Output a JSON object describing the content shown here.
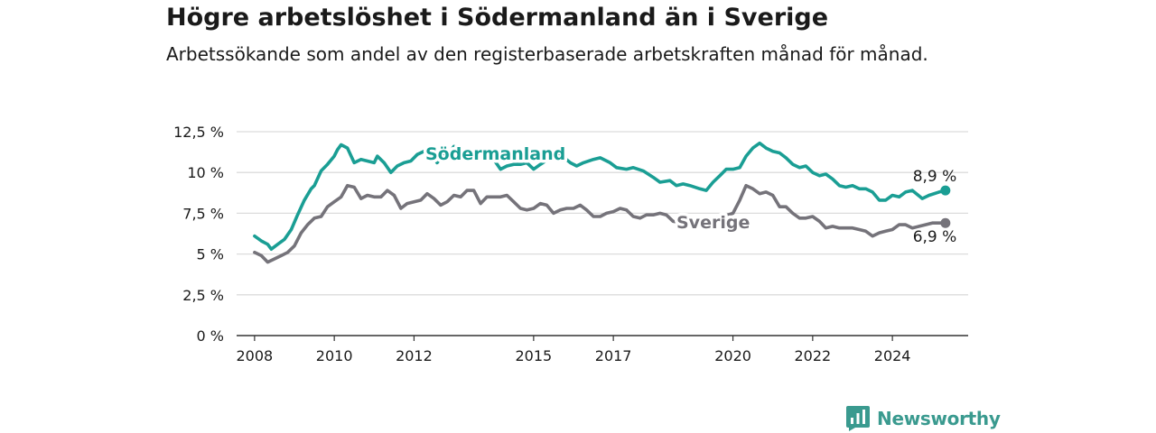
{
  "title": "Högre arbetslöshet i Södermanland än i Sverige",
  "subtitle": "Arbetssökande som andel av den registerbaserade arbetskraften månad för månad.",
  "brand": {
    "name": "Newsworthy",
    "icon": "chart-logo-icon"
  },
  "colors": {
    "sodermanland": "#1a9e94",
    "sverige": "#75737a",
    "grid": "#dcdcdc",
    "axis": "#333333"
  },
  "chart_data": {
    "type": "line",
    "x_ticks": [
      2008,
      2010,
      2012,
      2015,
      2017,
      2020,
      2022,
      2024
    ],
    "y_ticks": [
      {
        "value": 0,
        "label": "0 %"
      },
      {
        "value": 2.5,
        "label": "2,5 %"
      },
      {
        "value": 5,
        "label": "5 %"
      },
      {
        "value": 7.5,
        "label": "7,5 %"
      },
      {
        "value": 10,
        "label": "10 %"
      },
      {
        "value": 12.5,
        "label": "12,5 %"
      }
    ],
    "xlim": [
      2007.55,
      2025.9
    ],
    "ylim": [
      0,
      12.5
    ],
    "grid": true,
    "series": [
      {
        "name": "Södermanland",
        "end_label": "8,9 %",
        "points": [
          [
            2008.0,
            6.1
          ],
          [
            2008.17,
            5.8
          ],
          [
            2008.33,
            5.6
          ],
          [
            2008.42,
            5.3
          ],
          [
            2008.58,
            5.6
          ],
          [
            2008.75,
            5.9
          ],
          [
            2008.92,
            6.5
          ],
          [
            2009.08,
            7.4
          ],
          [
            2009.25,
            8.3
          ],
          [
            2009.42,
            9.0
          ],
          [
            2009.5,
            9.2
          ],
          [
            2009.67,
            10.1
          ],
          [
            2009.83,
            10.5
          ],
          [
            2010.0,
            11.0
          ],
          [
            2010.08,
            11.4
          ],
          [
            2010.17,
            11.7
          ],
          [
            2010.33,
            11.5
          ],
          [
            2010.5,
            10.6
          ],
          [
            2010.67,
            10.8
          ],
          [
            2010.83,
            10.7
          ],
          [
            2011.0,
            10.6
          ],
          [
            2011.08,
            11.0
          ],
          [
            2011.25,
            10.6
          ],
          [
            2011.42,
            10.0
          ],
          [
            2011.58,
            10.4
          ],
          [
            2011.75,
            10.6
          ],
          [
            2011.92,
            10.7
          ],
          [
            2012.08,
            11.1
          ],
          [
            2012.25,
            11.3
          ],
          [
            2012.42,
            11.2
          ],
          [
            2012.58,
            10.6
          ],
          [
            2012.75,
            11.1
          ],
          [
            2012.92,
            11.3
          ],
          [
            2013.0,
            11.6
          ],
          [
            2013.17,
            11.4
          ],
          [
            2013.33,
            10.9
          ],
          [
            2013.5,
            11.2
          ],
          [
            2013.67,
            11.1
          ],
          [
            2013.83,
            11.0
          ],
          [
            2014.0,
            10.8
          ],
          [
            2014.17,
            10.2
          ],
          [
            2014.33,
            10.4
          ],
          [
            2014.5,
            10.5
          ],
          [
            2014.67,
            10.5
          ],
          [
            2014.83,
            10.6
          ],
          [
            2015.0,
            10.2
          ],
          [
            2015.17,
            10.5
          ],
          [
            2015.42,
            10.9
          ],
          [
            2015.67,
            11.1
          ],
          [
            2015.92,
            10.6
          ],
          [
            2016.08,
            10.4
          ],
          [
            2016.25,
            10.6
          ],
          [
            2016.5,
            10.8
          ],
          [
            2016.67,
            10.9
          ],
          [
            2016.92,
            10.6
          ],
          [
            2017.08,
            10.3
          ],
          [
            2017.33,
            10.2
          ],
          [
            2017.5,
            10.3
          ],
          [
            2017.75,
            10.1
          ],
          [
            2018.0,
            9.7
          ],
          [
            2018.17,
            9.4
          ],
          [
            2018.42,
            9.5
          ],
          [
            2018.58,
            9.2
          ],
          [
            2018.75,
            9.3
          ],
          [
            2018.92,
            9.2
          ],
          [
            2019.17,
            9.0
          ],
          [
            2019.33,
            8.9
          ],
          [
            2019.5,
            9.4
          ],
          [
            2019.67,
            9.8
          ],
          [
            2019.83,
            10.2
          ],
          [
            2020.0,
            10.2
          ],
          [
            2020.17,
            10.3
          ],
          [
            2020.33,
            11.0
          ],
          [
            2020.5,
            11.5
          ],
          [
            2020.67,
            11.8
          ],
          [
            2020.83,
            11.5
          ],
          [
            2021.0,
            11.3
          ],
          [
            2021.17,
            11.2
          ],
          [
            2021.33,
            10.9
          ],
          [
            2021.5,
            10.5
          ],
          [
            2021.67,
            10.3
          ],
          [
            2021.83,
            10.4
          ],
          [
            2022.0,
            10.0
          ],
          [
            2022.17,
            9.8
          ],
          [
            2022.33,
            9.9
          ],
          [
            2022.5,
            9.6
          ],
          [
            2022.67,
            9.2
          ],
          [
            2022.83,
            9.1
          ],
          [
            2023.0,
            9.2
          ],
          [
            2023.17,
            9.0
          ],
          [
            2023.33,
            9.0
          ],
          [
            2023.5,
            8.8
          ],
          [
            2023.67,
            8.3
          ],
          [
            2023.83,
            8.3
          ],
          [
            2024.0,
            8.6
          ],
          [
            2024.17,
            8.5
          ],
          [
            2024.33,
            8.8
          ],
          [
            2024.5,
            8.9
          ],
          [
            2024.75,
            8.4
          ],
          [
            2024.92,
            8.6
          ],
          [
            2025.17,
            8.8
          ],
          [
            2025.33,
            8.9
          ]
        ]
      },
      {
        "name": "Sverige",
        "end_label": "6,9 %",
        "points": [
          [
            2008.0,
            5.1
          ],
          [
            2008.17,
            4.9
          ],
          [
            2008.33,
            4.5
          ],
          [
            2008.5,
            4.7
          ],
          [
            2008.67,
            4.9
          ],
          [
            2008.83,
            5.1
          ],
          [
            2009.0,
            5.5
          ],
          [
            2009.17,
            6.3
          ],
          [
            2009.33,
            6.8
          ],
          [
            2009.5,
            7.2
          ],
          [
            2009.67,
            7.3
          ],
          [
            2009.83,
            7.9
          ],
          [
            2010.0,
            8.2
          ],
          [
            2010.17,
            8.5
          ],
          [
            2010.33,
            9.2
          ],
          [
            2010.5,
            9.1
          ],
          [
            2010.67,
            8.4
          ],
          [
            2010.83,
            8.6
          ],
          [
            2011.0,
            8.5
          ],
          [
            2011.17,
            8.5
          ],
          [
            2011.33,
            8.9
          ],
          [
            2011.5,
            8.6
          ],
          [
            2011.67,
            7.8
          ],
          [
            2011.83,
            8.1
          ],
          [
            2012.0,
            8.2
          ],
          [
            2012.17,
            8.3
          ],
          [
            2012.33,
            8.7
          ],
          [
            2012.5,
            8.4
          ],
          [
            2012.67,
            8.0
          ],
          [
            2012.83,
            8.2
          ],
          [
            2013.0,
            8.6
          ],
          [
            2013.17,
            8.5
          ],
          [
            2013.33,
            8.9
          ],
          [
            2013.5,
            8.9
          ],
          [
            2013.67,
            8.1
          ],
          [
            2013.83,
            8.5
          ],
          [
            2014.0,
            8.5
          ],
          [
            2014.17,
            8.5
          ],
          [
            2014.33,
            8.6
          ],
          [
            2014.5,
            8.2
          ],
          [
            2014.67,
            7.8
          ],
          [
            2014.83,
            7.7
          ],
          [
            2015.0,
            7.8
          ],
          [
            2015.17,
            8.1
          ],
          [
            2015.33,
            8.0
          ],
          [
            2015.5,
            7.5
          ],
          [
            2015.67,
            7.7
          ],
          [
            2015.83,
            7.8
          ],
          [
            2016.0,
            7.8
          ],
          [
            2016.17,
            8.0
          ],
          [
            2016.33,
            7.7
          ],
          [
            2016.5,
            7.3
          ],
          [
            2016.67,
            7.3
          ],
          [
            2016.83,
            7.5
          ],
          [
            2017.0,
            7.6
          ],
          [
            2017.17,
            7.8
          ],
          [
            2017.33,
            7.7
          ],
          [
            2017.5,
            7.3
          ],
          [
            2017.67,
            7.2
          ],
          [
            2017.83,
            7.4
          ],
          [
            2018.0,
            7.4
          ],
          [
            2018.17,
            7.5
          ],
          [
            2018.33,
            7.4
          ],
          [
            2018.5,
            7.0
          ],
          [
            2018.75,
            6.9
          ],
          [
            2019.0,
            7.0
          ],
          [
            2019.25,
            7.1
          ],
          [
            2019.5,
            7.2
          ],
          [
            2019.75,
            7.3
          ],
          [
            2020.0,
            7.5
          ],
          [
            2020.17,
            8.3
          ],
          [
            2020.33,
            9.2
          ],
          [
            2020.5,
            9.0
          ],
          [
            2020.67,
            8.7
          ],
          [
            2020.83,
            8.8
          ],
          [
            2021.0,
            8.6
          ],
          [
            2021.17,
            7.9
          ],
          [
            2021.33,
            7.9
          ],
          [
            2021.5,
            7.5
          ],
          [
            2021.67,
            7.2
          ],
          [
            2021.83,
            7.2
          ],
          [
            2022.0,
            7.3
          ],
          [
            2022.17,
            7.0
          ],
          [
            2022.33,
            6.6
          ],
          [
            2022.5,
            6.7
          ],
          [
            2022.67,
            6.6
          ],
          [
            2022.83,
            6.6
          ],
          [
            2023.0,
            6.6
          ],
          [
            2023.17,
            6.5
          ],
          [
            2023.33,
            6.4
          ],
          [
            2023.5,
            6.1
          ],
          [
            2023.67,
            6.3
          ],
          [
            2023.83,
            6.4
          ],
          [
            2024.0,
            6.5
          ],
          [
            2024.17,
            6.8
          ],
          [
            2024.33,
            6.8
          ],
          [
            2024.5,
            6.6
          ],
          [
            2024.67,
            6.7
          ],
          [
            2024.83,
            6.8
          ],
          [
            2025.0,
            6.9
          ],
          [
            2025.33,
            6.9
          ]
        ]
      }
    ]
  }
}
